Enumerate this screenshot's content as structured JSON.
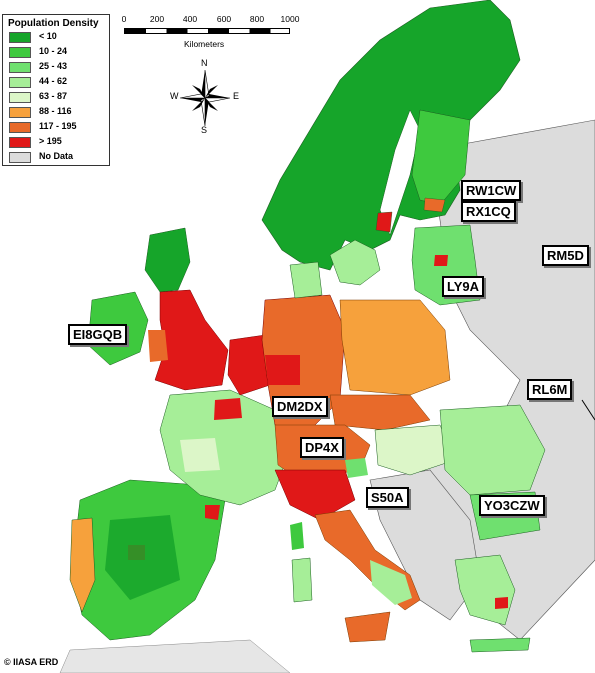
{
  "legend": {
    "title": "Population Density",
    "items": [
      {
        "label": "< 10",
        "color": "#16a52a"
      },
      {
        "label": "10 - 24",
        "color": "#3ec93e"
      },
      {
        "label": "25 - 43",
        "color": "#6fe06f"
      },
      {
        "label": "44 - 62",
        "color": "#a6ee98"
      },
      {
        "label": "63 - 87",
        "color": "#dcf6c8"
      },
      {
        "label": "88 - 116",
        "color": "#f6a13c"
      },
      {
        "label": "117 - 195",
        "color": "#e86a2a"
      },
      {
        "label": "> 195",
        "color": "#e01818"
      },
      {
        "label": "No Data",
        "color": "#dcdcdc"
      }
    ]
  },
  "scale": {
    "ticks": [
      "0",
      "200",
      "400",
      "600",
      "800",
      "1000"
    ],
    "unit": "Kilometers"
  },
  "compass": {
    "n": "N",
    "s": "S",
    "e": "E",
    "w": "W"
  },
  "callsigns": [
    "RW1CW",
    "RX1CQ",
    "RM5D",
    "LY9A",
    "EI8GQB",
    "RL6M",
    "DM2DX",
    "DP4X",
    "S50A",
    "YO3CZW"
  ],
  "copyright": "© IIASA ERD",
  "colors": {
    "sea": "#ffffff",
    "nodata": "#dcdcdc",
    "border": "#000000"
  }
}
